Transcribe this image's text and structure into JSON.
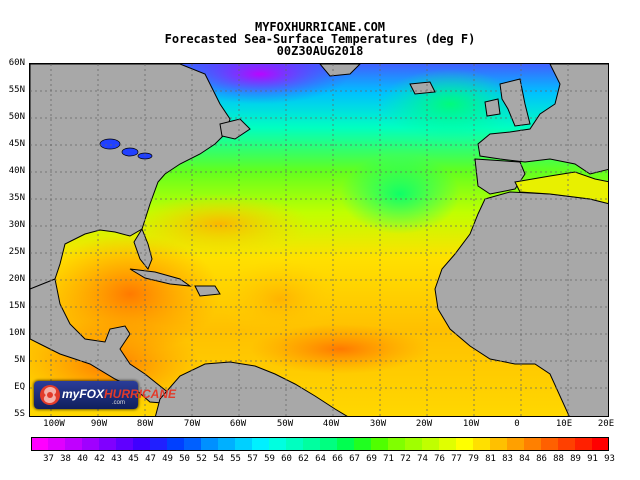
{
  "header": {
    "site": "MYFOXHURRICANE.COM",
    "title": "Forecasted Sea-Surface Temperatures (deg F)",
    "date": "00Z30AUG2018"
  },
  "latitude_labels": [
    "60N",
    "55N",
    "50N",
    "45N",
    "40N",
    "35N",
    "30N",
    "25N",
    "20N",
    "15N",
    "10N",
    "5N",
    "EQ",
    "5S"
  ],
  "longitude_labels": [
    "100W",
    "90W",
    "80W",
    "70W",
    "60W",
    "50W",
    "40W",
    "30W",
    "20W",
    "10W",
    "0",
    "10E",
    "20E"
  ],
  "colorbar": {
    "values": [
      "37",
      "38",
      "40",
      "42",
      "43",
      "45",
      "47",
      "49",
      "50",
      "52",
      "54",
      "55",
      "57",
      "59",
      "60",
      "62",
      "64",
      "66",
      "67",
      "69",
      "71",
      "72",
      "74",
      "76",
      "77",
      "79",
      "81",
      "83",
      "84",
      "86",
      "88",
      "89",
      "91",
      "93"
    ],
    "colors": [
      "#ff00ff",
      "#e000ff",
      "#c000ff",
      "#a000ff",
      "#8000ff",
      "#6000ff",
      "#4000ff",
      "#2020ff",
      "#0040ff",
      "#0060ff",
      "#0090ff",
      "#00b0ff",
      "#00d0ff",
      "#00f0ff",
      "#00ffe0",
      "#00ffc0",
      "#00ffa0",
      "#00ff80",
      "#00ff50",
      "#20ff20",
      "#50ff00",
      "#80ff00",
      "#a0ff00",
      "#c0ff00",
      "#e0ff00",
      "#ffff00",
      "#ffe000",
      "#ffc000",
      "#ffa000",
      "#ff8000",
      "#ff6000",
      "#ff4000",
      "#ff2000",
      "#ff0000"
    ]
  },
  "logo": {
    "brand_my": "my",
    "brand_fox": "FOX",
    "brand_hurricane": "HURRICANE",
    "sub": ".com"
  }
}
